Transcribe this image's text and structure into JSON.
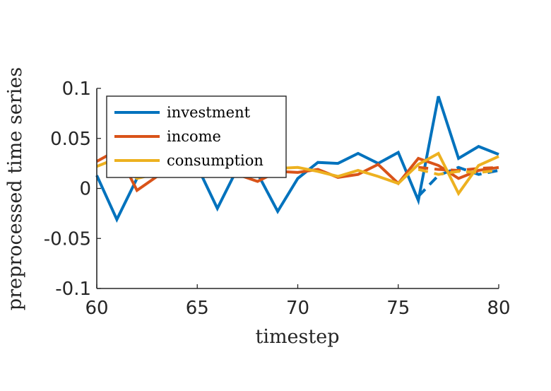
{
  "chart_data": {
    "type": "line",
    "title": "",
    "xlabel": "timestep",
    "ylabel": "preprocessed time series",
    "xlim": [
      60,
      80
    ],
    "ylim": [
      -0.1,
      0.1
    ],
    "xticks": [
      60,
      65,
      70,
      75,
      80
    ],
    "xtick_labels": [
      "60",
      "65",
      "70",
      "75",
      "80"
    ],
    "yticks": [
      0.1,
      0.05,
      0,
      -0.05,
      -0.1
    ],
    "ytick_labels": [
      "0.1",
      "0.05",
      "0",
      "-0.05",
      "-0.1"
    ],
    "grid": false,
    "legend": "top-left",
    "x": [
      60,
      61,
      62,
      63,
      64,
      65,
      66,
      67,
      68,
      69,
      70,
      71,
      72,
      73,
      74,
      75,
      76,
      77,
      78,
      79,
      80
    ],
    "series": [
      {
        "name": "investment",
        "color": "#0072BD",
        "values": [
          0.013,
          -0.031,
          0.01,
          0.018,
          0.02,
          0.022,
          -0.02,
          0.02,
          0.015,
          -0.023,
          0.01,
          0.026,
          0.025,
          0.035,
          0.025,
          0.036,
          -0.012,
          0.092,
          0.03,
          0.042,
          0.034
        ],
        "forecast_x": [
          76,
          77,
          78,
          79,
          80
        ],
        "forecast_values": [
          -0.008,
          0.013,
          0.021,
          0.014,
          0.018
        ]
      },
      {
        "name": "income",
        "color": "#D95319",
        "values": [
          0.027,
          0.038,
          -0.002,
          0.012,
          0.018,
          0.02,
          0.018,
          0.014,
          0.007,
          0.017,
          0.016,
          0.019,
          0.011,
          0.014,
          0.024,
          0.005,
          0.03,
          0.023,
          0.01,
          0.018,
          0.021
        ],
        "forecast_x": [
          76,
          77,
          78,
          79,
          80
        ],
        "forecast_values": [
          0.021,
          0.019,
          0.018,
          0.02,
          0.021
        ]
      },
      {
        "name": "consumption",
        "color": "#EDB120",
        "values": [
          0.022,
          0.03,
          0.01,
          0.015,
          0.02,
          0.02,
          0.018,
          0.018,
          0.016,
          0.02,
          0.021,
          0.017,
          0.012,
          0.018,
          0.012,
          0.005,
          0.024,
          0.035,
          -0.005,
          0.023,
          0.032
        ],
        "forecast_x": [
          76,
          77,
          78,
          79,
          80
        ],
        "forecast_values": [
          0.019,
          0.014,
          0.017,
          0.016,
          0.018
        ]
      }
    ]
  }
}
